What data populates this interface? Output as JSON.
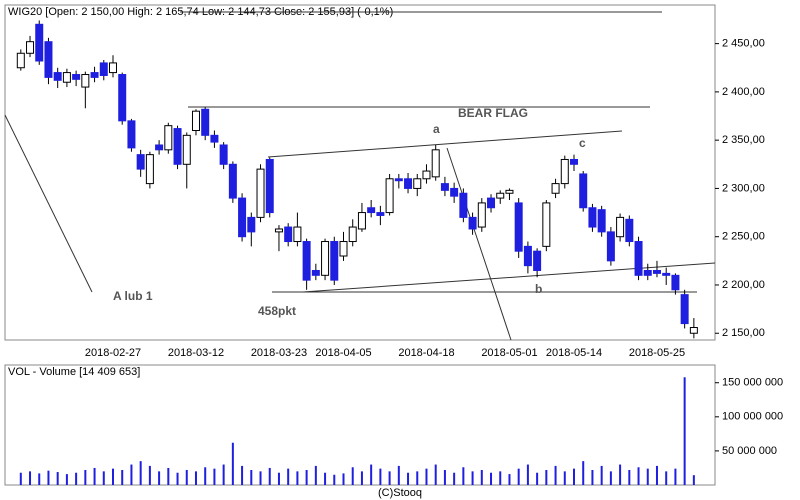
{
  "chart_data": [
    {
      "type": "candlestick",
      "title": "WIG20 [Open: 2 150,00  High: 2 165,74  Low: 2 144,73  Close: 2 155,93]  (-0,1%)",
      "categories": [
        null,
        null,
        null,
        null,
        null,
        null,
        null,
        null,
        null,
        null,
        "2018-02-27",
        null,
        null,
        null,
        null,
        null,
        null,
        null,
        null,
        "2018-03-12",
        null,
        null,
        null,
        null,
        null,
        null,
        null,
        null,
        "2018-03-23",
        null,
        null,
        null,
        null,
        null,
        null,
        "2018-04-05",
        null,
        null,
        null,
        null,
        null,
        null,
        null,
        null,
        "2018-04-18",
        null,
        null,
        null,
        null,
        null,
        null,
        null,
        null,
        "2018-05-01",
        null,
        null,
        null,
        null,
        null,
        null,
        "2018-05-14",
        null,
        null,
        null,
        null,
        null,
        null,
        null,
        null,
        "2018-05-25",
        null,
        null,
        null,
        null
      ],
      "open": [
        2425,
        2440,
        2470,
        2452,
        2420,
        2410,
        2418,
        2405,
        2420,
        2430,
        2420,
        2418,
        2370,
        2335,
        2305,
        2345,
        2340,
        2362,
        2325,
        2360,
        2382,
        2355,
        2345,
        2325,
        2290,
        2270,
        2270,
        2330,
        2255,
        2260,
        2245,
        2245,
        2215,
        2210,
        2245,
        2230,
        2245,
        2258,
        2280,
        2275,
        2275,
        2310,
        2310,
        2300,
        2310,
        2312,
        2305,
        2300,
        2295,
        2270,
        2260,
        2290,
        2290,
        2295,
        2285,
        2240,
        2235,
        2240,
        2295,
        2305,
        2330,
        2315,
        2280,
        2278,
        2255,
        2250,
        2268,
        2245,
        2215,
        2215,
        2212,
        2210,
        2190,
        2150
      ],
      "high": [
        2444,
        2458,
        2474,
        2456,
        2425,
        2424,
        2422,
        2421,
        2426,
        2433,
        2438,
        2420,
        2372,
        2340,
        2338,
        2350,
        2368,
        2365,
        2358,
        2382,
        2384,
        2360,
        2348,
        2328,
        2295,
        2275,
        2325,
        2332,
        2262,
        2264,
        2275,
        2248,
        2222,
        2248,
        2250,
        2255,
        2268,
        2285,
        2288,
        2282,
        2315,
        2315,
        2316,
        2315,
        2325,
        2345,
        2312,
        2306,
        2300,
        2275,
        2290,
        2294,
        2298,
        2300,
        2290,
        2245,
        2238,
        2288,
        2310,
        2334,
        2335,
        2318,
        2284,
        2282,
        2260,
        2274,
        2272,
        2250,
        2222,
        2225,
        2218,
        2212,
        2195,
        2165.74
      ],
      "low": [
        2422,
        2436,
        2428,
        2408,
        2404,
        2405,
        2406,
        2383,
        2410,
        2412,
        2415,
        2366,
        2338,
        2312,
        2300,
        2335,
        2336,
        2320,
        2300,
        2355,
        2350,
        2342,
        2320,
        2285,
        2245,
        2240,
        2265,
        2270,
        2235,
        2240,
        2240,
        2195,
        2205,
        2205,
        2200,
        2225,
        2240,
        2255,
        2270,
        2262,
        2272,
        2300,
        2295,
        2292,
        2305,
        2308,
        2292,
        2285,
        2265,
        2252,
        2255,
        2275,
        2284,
        2288,
        2228,
        2212,
        2208,
        2235,
        2290,
        2300,
        2318,
        2276,
        2255,
        2250,
        2220,
        2245,
        2240,
        2205,
        2205,
        2208,
        2200,
        2190,
        2155,
        2144.73
      ],
      "close": [
        2440,
        2452,
        2432,
        2415,
        2412,
        2420,
        2413,
        2418,
        2415,
        2417,
        2430,
        2370,
        2342,
        2320,
        2335,
        2340,
        2365,
        2325,
        2355,
        2380,
        2355,
        2348,
        2325,
        2290,
        2250,
        2255,
        2320,
        2275,
        2258,
        2245,
        2260,
        2205,
        2210,
        2245,
        2205,
        2245,
        2260,
        2275,
        2275,
        2272,
        2310,
        2308,
        2300,
        2310,
        2318,
        2340,
        2298,
        2292,
        2270,
        2258,
        2285,
        2280,
        2295,
        2298,
        2235,
        2220,
        2215,
        2285,
        2305,
        2330,
        2325,
        2280,
        2260,
        2255,
        2225,
        2270,
        2245,
        2210,
        2210,
        2212,
        2210,
        2195,
        2160,
        2155.93
      ],
      "up_color": "#ffffff",
      "down_color": "#1f1fdf",
      "ylim": [
        2143,
        2490
      ],
      "yticks": [
        {
          "value": 2150,
          "label": "2 150,00"
        },
        {
          "value": 2200,
          "label": "2 200,00"
        },
        {
          "value": 2250,
          "label": "2 250,00"
        },
        {
          "value": 2300,
          "label": "2 300,00"
        },
        {
          "value": 2350,
          "label": "2 350,00"
        },
        {
          "value": 2400,
          "label": "2 400,00"
        },
        {
          "value": 2450,
          "label": "2 450,00"
        }
      ],
      "annotations": [
        "BEAR FLAG",
        "a",
        "b",
        "c",
        "A lub 1",
        "458pkt"
      ]
    },
    {
      "type": "bar",
      "title": "VOL - Volume [14 409 653]",
      "values": [
        18000000,
        20000000,
        17000000,
        21000000,
        19000000,
        16000000,
        18000000,
        22000000,
        25000000,
        20000000,
        24000000,
        22000000,
        30000000,
        35000000,
        28000000,
        20000000,
        25000000,
        18000000,
        22000000,
        20000000,
        26000000,
        24000000,
        30000000,
        62000000,
        28000000,
        22000000,
        20000000,
        25000000,
        18000000,
        24000000,
        20000000,
        22000000,
        28000000,
        18000000,
        15000000,
        17000000,
        26000000,
        20000000,
        30000000,
        24000000,
        20000000,
        28000000,
        18000000,
        20000000,
        24000000,
        30000000,
        22000000,
        18000000,
        26000000,
        20000000,
        22000000,
        18000000,
        20000000,
        16000000,
        24000000,
        30000000,
        18000000,
        22000000,
        28000000,
        20000000,
        24000000,
        35000000,
        22000000,
        28000000,
        20000000,
        30000000,
        22000000,
        26000000,
        24000000,
        28000000,
        20000000,
        24000000,
        158000000,
        14409653
      ],
      "color": "#1f1fdf",
      "ylim": [
        0,
        176000000
      ],
      "yticks": [
        {
          "value": 50000000,
          "label": "50 000 000"
        },
        {
          "value": 100000000,
          "label": "100 000 000"
        },
        {
          "value": 150000000,
          "label": "150 000 000"
        }
      ],
      "footer": "(C)Stooq"
    }
  ]
}
